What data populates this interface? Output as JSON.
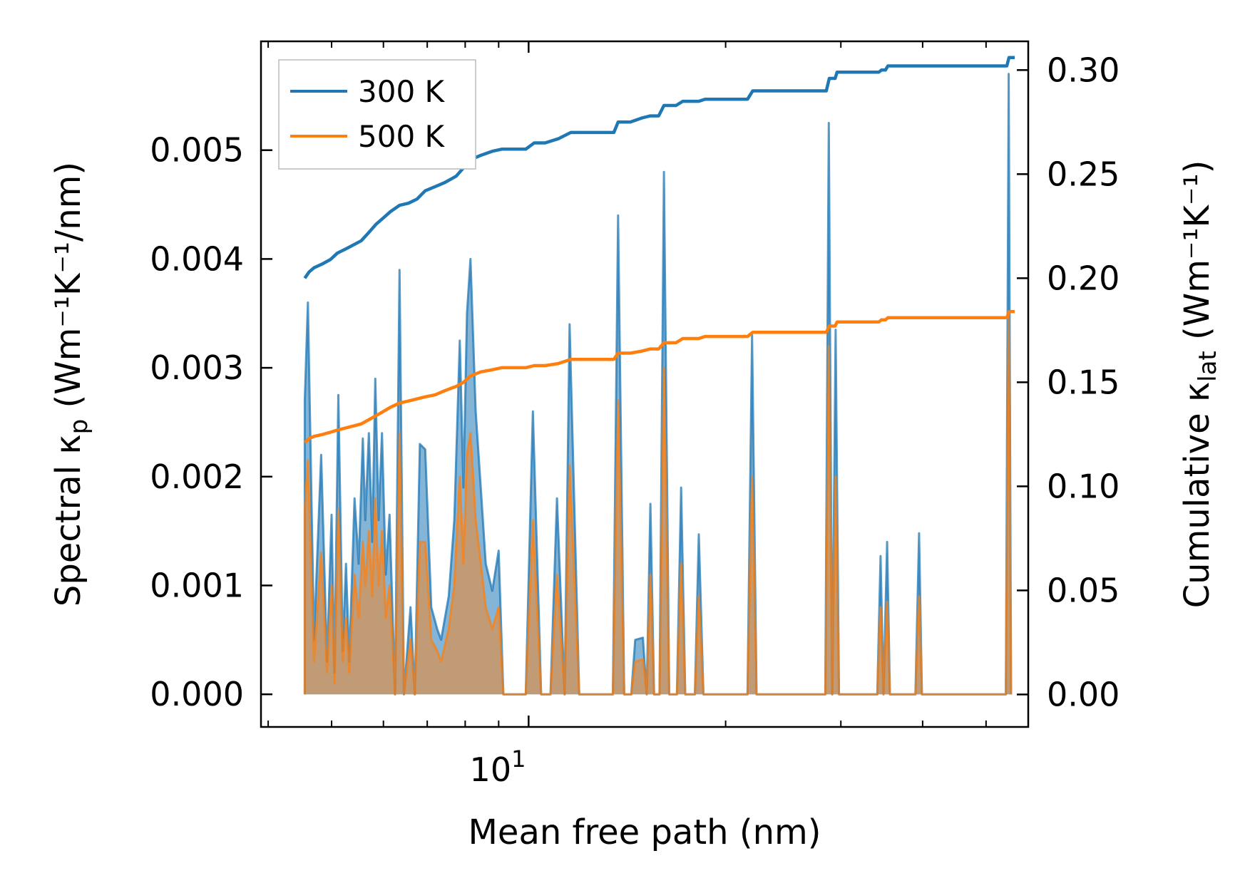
{
  "chart_data": {
    "type": "line",
    "xscale": "log",
    "xlabel": "Mean free path (nm)",
    "x_tick_label": {
      "base": "10",
      "exponent": "1"
    },
    "xlim": [
      3.9,
      58
    ],
    "left_axis": {
      "label_text": "Spectral κ",
      "label_sub": "p",
      "label_units": " (Wm⁻¹K⁻¹/nm)",
      "ylim": [
        -0.0003,
        0.006
      ],
      "ticks": [
        "0.000",
        "0.001",
        "0.002",
        "0.003",
        "0.004",
        "0.005"
      ],
      "tick_values": [
        0,
        0.001,
        0.002,
        0.003,
        0.004,
        0.005
      ]
    },
    "right_axis": {
      "label_text": "Cumulative κ",
      "label_sub": "lat",
      "label_units": " (Wm⁻¹K⁻¹)",
      "ylim": [
        -0.0156,
        0.3138
      ],
      "ticks": [
        "0.00",
        "0.05",
        "0.10",
        "0.15",
        "0.20",
        "0.25",
        "0.30"
      ],
      "tick_values": [
        0,
        0.05,
        0.1,
        0.15,
        0.2,
        0.25,
        0.3
      ]
    },
    "legend": {
      "position": "top-left",
      "entries": [
        "300 K",
        "500 K"
      ]
    },
    "colors": {
      "300 K": "#1f77b4",
      "500 K": "#ff7f0e",
      "overlap_fill": "#c7986c"
    },
    "spectral_series": [
      {
        "name": "300 K",
        "points": [
          [
            4.55,
            0
          ],
          [
            4.55,
            0.0027
          ],
          [
            4.6,
            0.0036
          ],
          [
            4.7,
            0.0005
          ],
          [
            4.82,
            0.0022
          ],
          [
            4.92,
            0.0003
          ],
          [
            5.0,
            0.00165
          ],
          [
            5.05,
            0.0002
          ],
          [
            5.12,
            0.00275
          ],
          [
            5.2,
            0.0004
          ],
          [
            5.26,
            0.0012
          ],
          [
            5.32,
            0.0003
          ],
          [
            5.42,
            0.0018
          ],
          [
            5.5,
            0.0012
          ],
          [
            5.58,
            0.00235
          ],
          [
            5.63,
            0.0016
          ],
          [
            5.7,
            0.0024
          ],
          [
            5.77,
            0.0014
          ],
          [
            5.83,
            0.0029
          ],
          [
            5.9,
            0.0016
          ],
          [
            5.97,
            0.0024
          ],
          [
            6.05,
            0.0011
          ],
          [
            6.13,
            0.00165
          ],
          [
            6.25,
            0
          ],
          [
            6.35,
            0.0039
          ],
          [
            6.45,
            0
          ],
          [
            6.6,
            0.0008
          ],
          [
            6.7,
            0
          ],
          [
            6.82,
            0.0023
          ],
          [
            6.95,
            0.00225
          ],
          [
            7.1,
            0.0008
          ],
          [
            7.25,
            0.0006
          ],
          [
            7.35,
            0.0005
          ],
          [
            7.55,
            0.0009
          ],
          [
            7.7,
            0.0016
          ],
          [
            7.85,
            0.00325
          ],
          [
            7.95,
            0.0019
          ],
          [
            8.05,
            0.0035
          ],
          [
            8.15,
            0.004
          ],
          [
            8.3,
            0.0026
          ],
          [
            8.45,
            0.0019
          ],
          [
            8.6,
            0.0012
          ],
          [
            8.8,
            0.00095
          ],
          [
            9.0,
            0.00132
          ],
          [
            9.15,
            0
          ],
          [
            9.9,
            0
          ],
          [
            10.15,
            0.0026
          ],
          [
            10.45,
            0
          ],
          [
            10.8,
            0
          ],
          [
            11.05,
            0.0018
          ],
          [
            11.35,
            0
          ],
          [
            11.55,
            0.0034
          ],
          [
            11.95,
            0
          ],
          [
            13.45,
            0
          ],
          [
            13.7,
            0.0044
          ],
          [
            14.0,
            0
          ],
          [
            14.35,
            0
          ],
          [
            14.55,
            0.0005
          ],
          [
            14.95,
            0.00052
          ],
          [
            15.15,
            0
          ],
          [
            15.35,
            0.00175
          ],
          [
            15.55,
            0
          ],
          [
            15.85,
            0
          ],
          [
            16.1,
            0.0048
          ],
          [
            16.4,
            0
          ],
          [
            16.85,
            0
          ],
          [
            17.1,
            0.0019
          ],
          [
            17.35,
            0
          ],
          [
            17.95,
            0
          ],
          [
            18.2,
            0.00147
          ],
          [
            18.5,
            0
          ],
          [
            21.6,
            0
          ],
          [
            21.95,
            0.0033
          ],
          [
            22.3,
            0
          ],
          [
            28.4,
            0
          ],
          [
            28.75,
            0.00525
          ],
          [
            29.1,
            0
          ],
          [
            29.45,
            0.00335
          ],
          [
            29.8,
            0
          ],
          [
            34.1,
            0
          ],
          [
            34.5,
            0.00127
          ],
          [
            34.85,
            0
          ],
          [
            35.3,
            0.0014
          ],
          [
            35.65,
            0
          ],
          [
            39.0,
            0
          ],
          [
            39.5,
            0.00148
          ],
          [
            39.9,
            0
          ],
          [
            53.6,
            0
          ],
          [
            54.15,
            0.0057
          ],
          [
            54.6,
            0
          ]
        ]
      },
      {
        "name": "500 K",
        "points": [
          [
            4.55,
            0
          ],
          [
            4.55,
            0.0017
          ],
          [
            4.6,
            0.00215
          ],
          [
            4.7,
            0.0003
          ],
          [
            4.82,
            0.0013
          ],
          [
            4.92,
            0.0002
          ],
          [
            5.0,
            0.001
          ],
          [
            5.05,
            0.0001
          ],
          [
            5.12,
            0.0017
          ],
          [
            5.2,
            0.0003
          ],
          [
            5.26,
            0.0007
          ],
          [
            5.32,
            0.0002
          ],
          [
            5.42,
            0.0011
          ],
          [
            5.5,
            0.0007
          ],
          [
            5.58,
            0.0014
          ],
          [
            5.63,
            0.001
          ],
          [
            5.7,
            0.0015
          ],
          [
            5.77,
            0.0009
          ],
          [
            5.83,
            0.0018
          ],
          [
            5.9,
            0.001
          ],
          [
            5.97,
            0.0015
          ],
          [
            6.05,
            0.0007
          ],
          [
            6.13,
            0.001
          ],
          [
            6.25,
            0
          ],
          [
            6.35,
            0.0024
          ],
          [
            6.45,
            0
          ],
          [
            6.6,
            0.0005
          ],
          [
            6.7,
            0
          ],
          [
            6.82,
            0.0014
          ],
          [
            6.95,
            0.0014
          ],
          [
            7.1,
            0.0005
          ],
          [
            7.25,
            0.0004
          ],
          [
            7.35,
            0.0003
          ],
          [
            7.55,
            0.0006
          ],
          [
            7.7,
            0.001
          ],
          [
            7.85,
            0.002
          ],
          [
            7.95,
            0.0012
          ],
          [
            8.05,
            0.0022
          ],
          [
            8.15,
            0.0024
          ],
          [
            8.3,
            0.0016
          ],
          [
            8.45,
            0.0012
          ],
          [
            8.6,
            0.0008
          ],
          [
            8.8,
            0.0006
          ],
          [
            9.0,
            0.0008
          ],
          [
            9.15,
            0
          ],
          [
            9.9,
            0
          ],
          [
            10.15,
            0.0016
          ],
          [
            10.45,
            0
          ],
          [
            10.8,
            0
          ],
          [
            11.05,
            0.0011
          ],
          [
            11.35,
            0
          ],
          [
            11.55,
            0.0021
          ],
          [
            11.95,
            0
          ],
          [
            13.45,
            0
          ],
          [
            13.7,
            0.0027
          ],
          [
            14.0,
            0
          ],
          [
            14.35,
            0
          ],
          [
            14.55,
            0.0003
          ],
          [
            14.95,
            0.00032
          ],
          [
            15.15,
            0
          ],
          [
            15.35,
            0.0011
          ],
          [
            15.55,
            0
          ],
          [
            15.85,
            0
          ],
          [
            16.1,
            0.003
          ],
          [
            16.4,
            0
          ],
          [
            16.85,
            0
          ],
          [
            17.1,
            0.0012
          ],
          [
            17.35,
            0
          ],
          [
            17.95,
            0
          ],
          [
            18.2,
            0.0009
          ],
          [
            18.5,
            0
          ],
          [
            21.6,
            0
          ],
          [
            21.95,
            0.002
          ],
          [
            22.3,
            0
          ],
          [
            28.4,
            0
          ],
          [
            28.75,
            0.0032
          ],
          [
            29.1,
            0
          ],
          [
            29.45,
            0.002
          ],
          [
            29.8,
            0
          ],
          [
            34.1,
            0
          ],
          [
            34.5,
            0.0008
          ],
          [
            34.85,
            0
          ],
          [
            35.3,
            0.00085
          ],
          [
            35.65,
            0
          ],
          [
            39.0,
            0
          ],
          [
            39.5,
            0.0009
          ],
          [
            39.9,
            0
          ],
          [
            53.6,
            0
          ],
          [
            54.15,
            0.0035
          ],
          [
            54.6,
            0
          ]
        ]
      }
    ],
    "cumulative_series": [
      {
        "name": "300 K",
        "points": [
          [
            4.55,
            0.2
          ],
          [
            4.62,
            0.203
          ],
          [
            4.7,
            0.205
          ],
          [
            4.85,
            0.207
          ],
          [
            4.98,
            0.209
          ],
          [
            5.1,
            0.212
          ],
          [
            5.25,
            0.214
          ],
          [
            5.4,
            0.216
          ],
          [
            5.55,
            0.218
          ],
          [
            5.7,
            0.222
          ],
          [
            5.85,
            0.226
          ],
          [
            6.0,
            0.229
          ],
          [
            6.15,
            0.232
          ],
          [
            6.35,
            0.235
          ],
          [
            6.55,
            0.236
          ],
          [
            6.75,
            0.238
          ],
          [
            6.95,
            0.242
          ],
          [
            7.2,
            0.244
          ],
          [
            7.45,
            0.246
          ],
          [
            7.75,
            0.249
          ],
          [
            7.95,
            0.253
          ],
          [
            8.15,
            0.257
          ],
          [
            8.45,
            0.259
          ],
          [
            8.8,
            0.261
          ],
          [
            9.1,
            0.262
          ],
          [
            9.9,
            0.262
          ],
          [
            10.2,
            0.265
          ],
          [
            10.6,
            0.265
          ],
          [
            11.1,
            0.267
          ],
          [
            11.6,
            0.27
          ],
          [
            12.2,
            0.27
          ],
          [
            13.5,
            0.27
          ],
          [
            13.7,
            0.275
          ],
          [
            14.3,
            0.275
          ],
          [
            14.9,
            0.277
          ],
          [
            15.35,
            0.278
          ],
          [
            15.8,
            0.278
          ],
          [
            16.1,
            0.283
          ],
          [
            16.8,
            0.283
          ],
          [
            17.2,
            0.285
          ],
          [
            18.2,
            0.285
          ],
          [
            18.6,
            0.286
          ],
          [
            21.6,
            0.286
          ],
          [
            22.0,
            0.29
          ],
          [
            28.5,
            0.29
          ],
          [
            28.8,
            0.296
          ],
          [
            29.4,
            0.296
          ],
          [
            29.6,
            0.299
          ],
          [
            34.3,
            0.299
          ],
          [
            34.6,
            0.3
          ],
          [
            35.1,
            0.3
          ],
          [
            35.4,
            0.302
          ],
          [
            53.8,
            0.302
          ],
          [
            54.2,
            0.306
          ],
          [
            55.3,
            0.306
          ]
        ]
      },
      {
        "name": "500 K",
        "points": [
          [
            4.55,
            0.121
          ],
          [
            4.62,
            0.123
          ],
          [
            4.7,
            0.124
          ],
          [
            4.85,
            0.125
          ],
          [
            4.98,
            0.126
          ],
          [
            5.1,
            0.127
          ],
          [
            5.25,
            0.128
          ],
          [
            5.4,
            0.129
          ],
          [
            5.55,
            0.13
          ],
          [
            5.7,
            0.132
          ],
          [
            5.85,
            0.134
          ],
          [
            6.0,
            0.136
          ],
          [
            6.15,
            0.138
          ],
          [
            6.35,
            0.14
          ],
          [
            6.55,
            0.141
          ],
          [
            6.75,
            0.142
          ],
          [
            6.95,
            0.143
          ],
          [
            7.2,
            0.144
          ],
          [
            7.45,
            0.146
          ],
          [
            7.75,
            0.148
          ],
          [
            7.95,
            0.15
          ],
          [
            8.15,
            0.153
          ],
          [
            8.45,
            0.155
          ],
          [
            8.8,
            0.156
          ],
          [
            9.1,
            0.157
          ],
          [
            9.9,
            0.157
          ],
          [
            10.2,
            0.158
          ],
          [
            10.6,
            0.158
          ],
          [
            11.1,
            0.159
          ],
          [
            11.6,
            0.161
          ],
          [
            12.2,
            0.161
          ],
          [
            13.5,
            0.161
          ],
          [
            13.7,
            0.164
          ],
          [
            14.3,
            0.164
          ],
          [
            14.9,
            0.165
          ],
          [
            15.35,
            0.166
          ],
          [
            15.8,
            0.166
          ],
          [
            16.1,
            0.169
          ],
          [
            16.8,
            0.169
          ],
          [
            17.2,
            0.171
          ],
          [
            18.2,
            0.171
          ],
          [
            18.6,
            0.172
          ],
          [
            21.6,
            0.172
          ],
          [
            22.0,
            0.174
          ],
          [
            28.5,
            0.174
          ],
          [
            28.8,
            0.177
          ],
          [
            29.4,
            0.177
          ],
          [
            29.6,
            0.179
          ],
          [
            34.3,
            0.179
          ],
          [
            34.6,
            0.18
          ],
          [
            35.1,
            0.18
          ],
          [
            35.4,
            0.181
          ],
          [
            53.8,
            0.181
          ],
          [
            54.2,
            0.184
          ],
          [
            55.3,
            0.184
          ]
        ]
      }
    ]
  }
}
